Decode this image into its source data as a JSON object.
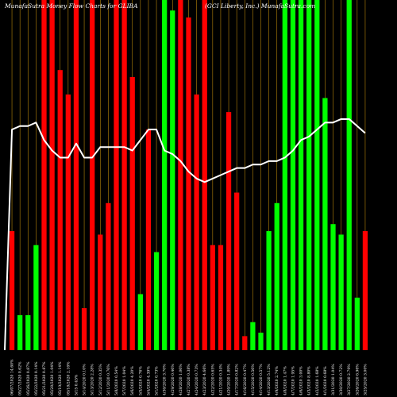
{
  "chart_data": {
    "type": "bar",
    "title_left": "MunafaSutra  Money Flow  Charts for GLIBA",
    "title_right": "(GCI Liberty,  Inc.) MunafaSutra.com",
    "colors": {
      "background": "#000000",
      "up": "#00ff00",
      "down": "#ff0000",
      "vline": "#b8860b",
      "line": "#ffffff"
    },
    "grid": "vertical lines at each bar",
    "ylim": [
      0,
      100
    ],
    "categories": [
      "06/07/2020 14.60%",
      "05/27/2020 0.62%",
      "05/26/2020 0.87%",
      "05/22/2020 0.14%",
      "05/21/2020 0.87%",
      "05/20/2020 1.04%",
      "05/19/2020 1.14%",
      "05/18/2020 2.16%",
      "5/15 0.45%",
      "5/14/2020 0.10%",
      "5/13/2020 2.28%",
      "5/12/2020 0.35%",
      "5/11/2020 0.76%",
      "5/8/2020 0.54%",
      "5/7/2020 1.04%",
      "5/6/2020 4.20%",
      "5/5/2020 0.76%",
      "5/4/2020 4.39%",
      "5/1/2020 0.73%",
      "4/30/2020 3.70%",
      "4/29/2020 0.46%",
      "4/28/2020 1.06%",
      "4/27/2020 0.38%",
      "4/24/2020 0.73%",
      "4/23/2020 4.66%",
      "4/22/2020 0.65%",
      "4/21/2020 0.34%",
      "4/20/2020 1.89%",
      "4/17/2020 0.82%",
      "4/16/2020 0.47%",
      "4/15/2020 0.56%",
      "4/14/2020 0.57%",
      "4/13/2020 5.12%",
      "4/9/2020 2.74%",
      "4/8/2020 1.47%",
      "4/7/2020 1.95%",
      "4/6/2020 3.00%",
      "4/3/2020 8.80%",
      "4/2/2020 1.68%",
      "4/1/2020 0.68%",
      "3/31/2020 1.04%",
      "3/30/2020 0.72%",
      "3/27/2020 2.79%",
      "3/26/2020 6.96%",
      "3/25/2020 3.00%"
    ],
    "bar_colors": [
      "red",
      "green",
      "green",
      "green",
      "red",
      "red",
      "red",
      "red",
      "red",
      "red",
      "red",
      "red",
      "red",
      "red",
      "red",
      "red",
      "green",
      "red",
      "green",
      "green",
      "green",
      "red",
      "red",
      "red",
      "red",
      "red",
      "red",
      "red",
      "red",
      "red",
      "green",
      "green",
      "green",
      "green",
      "green",
      "green",
      "green",
      "green",
      "green",
      "green",
      "green",
      "green",
      "green",
      "green",
      "red"
    ],
    "values": [
      34,
      10,
      10,
      30,
      100,
      100,
      80,
      73,
      100,
      12,
      100,
      33,
      42,
      100,
      100,
      78,
      16,
      63,
      28,
      100,
      97,
      100,
      95,
      73,
      100,
      30,
      30,
      68,
      45,
      4,
      8,
      5,
      34,
      42,
      100,
      100,
      100,
      100,
      100,
      72,
      36,
      33,
      100,
      15,
      34
    ],
    "line_values": [
      63,
      64,
      64,
      65,
      60,
      57,
      55,
      55,
      59,
      55,
      55,
      58,
      58,
      58,
      58,
      57,
      60,
      63,
      63,
      57,
      56,
      54,
      51,
      49,
      48,
      49,
      50,
      51,
      52,
      52,
      53,
      53,
      54,
      54,
      55,
      57,
      60,
      61,
      63,
      65,
      65,
      66,
      66,
      64,
      62
    ]
  }
}
